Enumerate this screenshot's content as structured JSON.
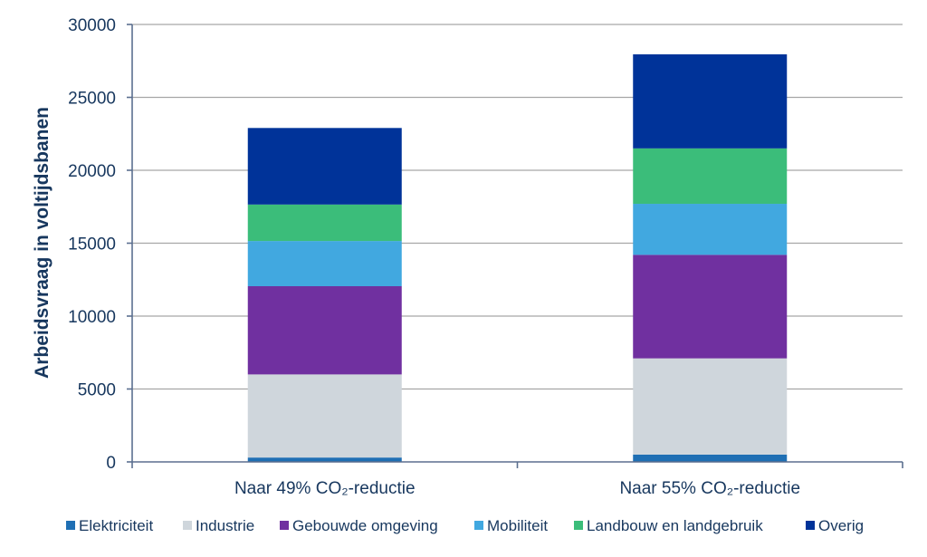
{
  "chart_data": {
    "type": "bar",
    "stacked": true,
    "categories": [
      "Naar 49% CO₂-reductie",
      "Naar 55% CO₂-reductie"
    ],
    "series": [
      {
        "name": "Elektriciteit",
        "color": "#1f6fb4",
        "values": [
          300,
          500
        ]
      },
      {
        "name": "Industrie",
        "color": "#cfd6dc",
        "values": [
          5700,
          6600
        ]
      },
      {
        "name": "Gebouwde omgeving",
        "color": "#7030a0",
        "values": [
          6050,
          7100
        ]
      },
      {
        "name": "Mobiliteit",
        "color": "#41a8e0",
        "values": [
          3100,
          3500
        ]
      },
      {
        "name": "Landbouw en landgebruik",
        "color": "#3bbd7a",
        "values": [
          2500,
          3800
        ]
      },
      {
        "name": "Overig",
        "color": "#003399",
        "values": [
          5250,
          6450
        ]
      }
    ],
    "title": "",
    "xlabel": "",
    "ylabel": "Arbeidsvraag in voltijdsbanen",
    "ylim": [
      0,
      30000
    ],
    "yticks": [
      0,
      5000,
      10000,
      15000,
      20000,
      25000,
      30000
    ],
    "grid": true,
    "legend": "bottom"
  }
}
